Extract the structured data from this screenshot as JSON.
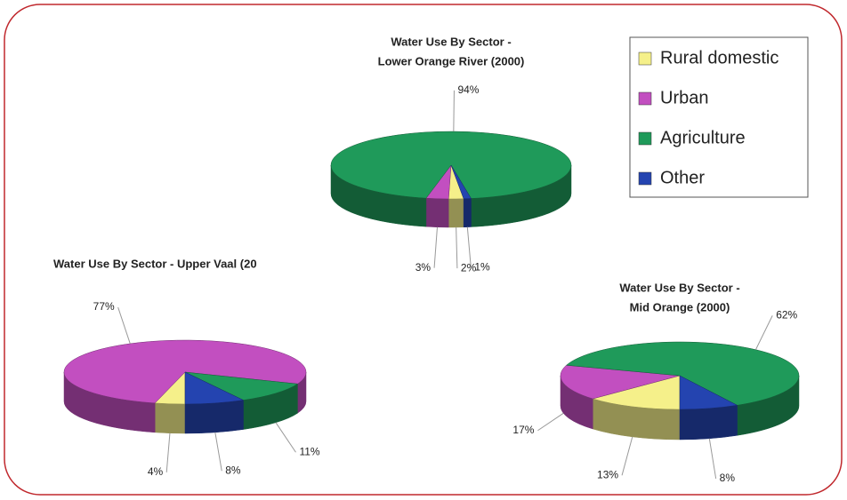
{
  "chart_data": [
    {
      "type": "pie3d",
      "title": [
        "Water Use By Sector -",
        "Lower Orange River (2000)"
      ],
      "categories": [
        "Rural domestic",
        "Urban",
        "Agriculture",
        "Other"
      ],
      "colors": [
        "#f5f08a",
        "#c24fc0",
        "#1f9a5a",
        "#2444b0"
      ],
      "values": [
        2,
        3,
        94,
        1
      ],
      "value_labels": [
        "2%",
        "3%",
        "94%",
        "1%"
      ]
    },
    {
      "type": "pie3d",
      "title": [
        "Water Use By Sector - Upper Vaal (20"
      ],
      "categories": [
        "Rural domestic",
        "Urban",
        "Agriculture",
        "Other"
      ],
      "colors": [
        "#f5f08a",
        "#c24fc0",
        "#1f9a5a",
        "#2444b0"
      ],
      "values": [
        4,
        77,
        11,
        8
      ],
      "value_labels": [
        "4%",
        "77%",
        "11%",
        "8%"
      ]
    },
    {
      "type": "pie3d",
      "title": [
        "Water Use By Sector -",
        "Mid Orange (2000)"
      ],
      "categories": [
        "Rural domestic",
        "Urban",
        "Agriculture",
        "Other"
      ],
      "colors": [
        "#f5f08a",
        "#c24fc0",
        "#1f9a5a",
        "#2444b0"
      ],
      "values": [
        13,
        17,
        62,
        8
      ],
      "value_labels": [
        "13%",
        "17%",
        "62%",
        "8%"
      ]
    }
  ]
}
